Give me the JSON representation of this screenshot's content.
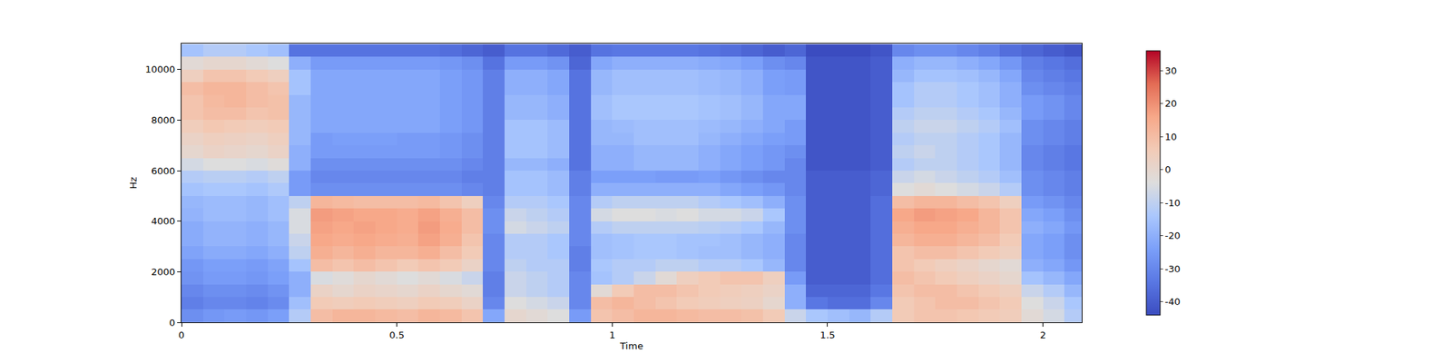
{
  "chart_data": {
    "type": "heatmap",
    "x_label": "Time",
    "y_label": "Hz",
    "xlim": [
      0,
      2.09
    ],
    "xticks": [
      0,
      0.5,
      1,
      1.5,
      2
    ],
    "ylim": [
      0,
      11025
    ],
    "yticks": [
      0,
      2000,
      4000,
      6000,
      8000,
      10000
    ],
    "zlim": [
      -44,
      36
    ],
    "zticks": [
      -40,
      -30,
      -20,
      -10,
      0,
      10,
      20,
      30
    ],
    "x": [
      0.025,
      0.075,
      0.125,
      0.175,
      0.225,
      0.275,
      0.325,
      0.375,
      0.425,
      0.475,
      0.525,
      0.575,
      0.625,
      0.675,
      0.725,
      0.775,
      0.825,
      0.875,
      0.925,
      0.975,
      1.025,
      1.075,
      1.125,
      1.175,
      1.225,
      1.275,
      1.325,
      1.375,
      1.425,
      1.475,
      1.525,
      1.575,
      1.625,
      1.675,
      1.725,
      1.775,
      1.825,
      1.875,
      1.925,
      1.975,
      2.025,
      2.075
    ],
    "y": [
      250,
      750,
      1250,
      1750,
      2250,
      2750,
      3250,
      3750,
      4250,
      4750,
      5250,
      5750,
      6250,
      6750,
      7250,
      7750,
      8250,
      8750,
      9250,
      9750,
      10250,
      10750
    ],
    "z": [
      [
        -28,
        -26,
        -25,
        -26,
        -24,
        -12,
        10,
        12,
        12,
        11,
        10,
        12,
        11,
        8,
        -22,
        0,
        -2,
        -4,
        -25,
        8,
        10,
        12,
        12,
        11,
        10,
        10,
        9,
        6,
        -8,
        -14,
        -16,
        -18,
        -12,
        6,
        8,
        8,
        7,
        6,
        5,
        -2,
        -6,
        -12
      ],
      [
        -32,
        -30,
        -30,
        -31,
        -29,
        -16,
        6,
        5,
        6,
        5,
        4,
        6,
        5,
        2,
        -30,
        -4,
        -6,
        -8,
        -30,
        10,
        12,
        10,
        8,
        6,
        5,
        4,
        3,
        0,
        -20,
        -34,
        -36,
        -36,
        -30,
        6,
        8,
        10,
        10,
        8,
        6,
        -4,
        -8,
        -14
      ],
      [
        -30,
        -28,
        -28,
        -29,
        -27,
        -20,
        2,
        0,
        2,
        1,
        0,
        2,
        0,
        -2,
        -32,
        -8,
        -10,
        -12,
        -30,
        -2,
        6,
        10,
        10,
        8,
        6,
        5,
        4,
        2,
        -20,
        -38,
        -38,
        -38,
        -34,
        8,
        10,
        10,
        8,
        6,
        4,
        -8,
        -12,
        -18
      ],
      [
        -27,
        -25,
        -25,
        -26,
        -24,
        -20,
        -5,
        -3,
        0,
        -2,
        -4,
        -2,
        -5,
        -8,
        -32,
        -8,
        -10,
        -12,
        -30,
        -15,
        -12,
        -8,
        -2,
        4,
        6,
        8,
        8,
        4,
        -25,
        -40,
        -40,
        -40,
        -36,
        10,
        8,
        6,
        4,
        2,
        0,
        -15,
        -18,
        -22
      ],
      [
        -26,
        -24,
        -24,
        -25,
        -23,
        -15,
        10,
        8,
        10,
        8,
        6,
        8,
        6,
        2,
        -30,
        -10,
        -12,
        -12,
        -32,
        -14,
        -12,
        -12,
        -10,
        -10,
        -12,
        -12,
        -14,
        -18,
        -30,
        -40,
        -40,
        -40,
        -36,
        8,
        6,
        4,
        2,
        0,
        -2,
        -20,
        -22,
        -26
      ],
      [
        -23,
        -21,
        -21,
        -22,
        -20,
        -10,
        14,
        12,
        14,
        12,
        12,
        14,
        10,
        6,
        -30,
        -12,
        -12,
        -14,
        -32,
        -16,
        -15,
        -14,
        -14,
        -15,
        -16,
        -16,
        -18,
        -20,
        -30,
        -40,
        -40,
        -40,
        -36,
        8,
        10,
        10,
        8,
        6,
        4,
        -22,
        -24,
        -28
      ],
      [
        -21,
        -19,
        -19,
        -20,
        -18,
        -8,
        16,
        15,
        16,
        15,
        14,
        17,
        14,
        8,
        -30,
        -12,
        -12,
        -14,
        -30,
        -16,
        -15,
        -14,
        -14,
        -15,
        -15,
        -16,
        -18,
        -20,
        -30,
        -40,
        -40,
        -40,
        -36,
        12,
        14,
        14,
        12,
        10,
        6,
        -22,
        -24,
        -28
      ],
      [
        -21,
        -19,
        -19,
        -20,
        -18,
        -5,
        17,
        16,
        17,
        16,
        15,
        18,
        15,
        10,
        -28,
        -6,
        -8,
        -10,
        -30,
        -12,
        -10,
        -10,
        -10,
        -10,
        -11,
        -12,
        -14,
        -18,
        -28,
        -40,
        -40,
        -40,
        -36,
        14,
        16,
        16,
        14,
        12,
        8,
        -20,
        -22,
        -26
      ],
      [
        -19,
        -17,
        -17,
        -18,
        -16,
        -5,
        18,
        17,
        16,
        16,
        15,
        17,
        14,
        10,
        -28,
        -8,
        -10,
        -12,
        -30,
        -6,
        -4,
        -4,
        -5,
        -4,
        -6,
        -6,
        -8,
        -14,
        -28,
        -40,
        -40,
        -40,
        -36,
        16,
        18,
        17,
        16,
        12,
        8,
        -22,
        -24,
        -28
      ],
      [
        -18,
        -17,
        -17,
        -18,
        -16,
        -10,
        12,
        11,
        10,
        10,
        10,
        11,
        8,
        4,
        -30,
        -12,
        -12,
        -14,
        -30,
        -12,
        -10,
        -10,
        -10,
        -10,
        -12,
        -14,
        -16,
        -20,
        -28,
        -40,
        -40,
        -40,
        -36,
        10,
        12,
        12,
        10,
        8,
        4,
        -25,
        -27,
        -30
      ],
      [
        -15,
        -14,
        -14,
        -15,
        -13,
        -25,
        -28,
        -28,
        -28,
        -28,
        -28,
        -28,
        -28,
        -30,
        -32,
        -15,
        -15,
        -17,
        -32,
        -20,
        -20,
        -20,
        -20,
        -20,
        -20,
        -22,
        -24,
        -26,
        -30,
        -40,
        -40,
        -40,
        -38,
        -4,
        -2,
        -4,
        -6,
        -8,
        -12,
        -28,
        -30,
        -32
      ],
      [
        -12,
        -11,
        -11,
        -12,
        -10,
        -25,
        -30,
        -30,
        -30,
        -30,
        -30,
        -30,
        -30,
        -32,
        -32,
        -15,
        -15,
        -17,
        -32,
        -24,
        -24,
        -24,
        -25,
        -25,
        -24,
        -26,
        -28,
        -30,
        -30,
        -40,
        -40,
        -40,
        -38,
        -8,
        -6,
        -8,
        -10,
        -12,
        -16,
        -28,
        -30,
        -32
      ],
      [
        -6,
        -4,
        -4,
        -5,
        -3,
        -20,
        -28,
        -28,
        -28,
        -28,
        -28,
        -28,
        -28,
        -30,
        -32,
        -18,
        -18,
        -20,
        -35,
        -20,
        -20,
        -18,
        -18,
        -18,
        -20,
        -22,
        -24,
        -26,
        -30,
        -42,
        -42,
        -42,
        -40,
        -12,
        -10,
        -10,
        -12,
        -14,
        -18,
        -30,
        -32,
        -34
      ],
      [
        0,
        2,
        1,
        0,
        2,
        -20,
        -25,
        -25,
        -25,
        -25,
        -25,
        -25,
        -26,
        -28,
        -32,
        -15,
        -15,
        -17,
        -35,
        -20,
        -20,
        -18,
        -18,
        -18,
        -20,
        -22,
        -24,
        -26,
        -28,
        -42,
        -42,
        -42,
        -40,
        -10,
        -8,
        -10,
        -12,
        -14,
        -18,
        -30,
        -32,
        -34
      ],
      [
        2,
        4,
        3,
        2,
        4,
        -18,
        -25,
        -24,
        -24,
        -24,
        -25,
        -25,
        -26,
        -28,
        -32,
        -15,
        -15,
        -17,
        -35,
        -18,
        -18,
        -16,
        -16,
        -16,
        -18,
        -20,
        -22,
        -24,
        -25,
        -42,
        -42,
        -42,
        -40,
        -12,
        -10,
        -10,
        -12,
        -14,
        -18,
        -28,
        -30,
        -32
      ],
      [
        5,
        7,
        6,
        5,
        6,
        -18,
        -22,
        -22,
        -22,
        -22,
        -22,
        -22,
        -24,
        -26,
        -32,
        -15,
        -15,
        -17,
        -35,
        -18,
        -17,
        -16,
        -16,
        -16,
        -17,
        -18,
        -20,
        -22,
        -25,
        -42,
        -42,
        -42,
        -40,
        -10,
        -8,
        -8,
        -10,
        -12,
        -16,
        -28,
        -30,
        -32
      ],
      [
        8,
        10,
        10,
        8,
        9,
        -18,
        -22,
        -22,
        -22,
        -22,
        -22,
        -22,
        -24,
        -26,
        -32,
        -18,
        -18,
        -20,
        -35,
        -16,
        -14,
        -14,
        -14,
        -14,
        -15,
        -16,
        -18,
        -22,
        -22,
        -42,
        -42,
        -42,
        -40,
        -12,
        -10,
        -10,
        -12,
        -14,
        -18,
        -25,
        -27,
        -30
      ],
      [
        8,
        11,
        12,
        10,
        9,
        -18,
        -22,
        -22,
        -22,
        -22,
        -22,
        -22,
        -24,
        -26,
        -32,
        -18,
        -18,
        -20,
        -35,
        -16,
        -14,
        -14,
        -14,
        -14,
        -15,
        -16,
        -18,
        -22,
        -22,
        -42,
        -42,
        -42,
        -40,
        -15,
        -12,
        -12,
        -14,
        -16,
        -20,
        -25,
        -27,
        -30
      ],
      [
        10,
        12,
        12,
        10,
        8,
        -15,
        -22,
        -22,
        -22,
        -22,
        -22,
        -22,
        -24,
        -26,
        -32,
        -20,
        -20,
        -22,
        -35,
        -18,
        -16,
        -16,
        -16,
        -16,
        -17,
        -18,
        -20,
        -24,
        -25,
        -42,
        -42,
        -42,
        -40,
        -15,
        -12,
        -12,
        -14,
        -16,
        -20,
        -28,
        -30,
        -32
      ],
      [
        4,
        8,
        8,
        6,
        4,
        -15,
        -22,
        -22,
        -22,
        -22,
        -22,
        -22,
        -24,
        -26,
        -32,
        -20,
        -20,
        -22,
        -35,
        -18,
        -16,
        -16,
        -16,
        -16,
        -17,
        -18,
        -20,
        -24,
        -25,
        -42,
        -42,
        -42,
        -40,
        -18,
        -15,
        -15,
        -16,
        -18,
        -22,
        -30,
        -32,
        -34
      ],
      [
        -2,
        0,
        0,
        -2,
        -4,
        -20,
        -25,
        -25,
        -25,
        -25,
        -25,
        -25,
        -26,
        -28,
        -35,
        -25,
        -25,
        -27,
        -38,
        -22,
        -20,
        -20,
        -20,
        -20,
        -21,
        -22,
        -24,
        -28,
        -30,
        -42,
        -42,
        -42,
        -40,
        -20,
        -18,
        -18,
        -20,
        -22,
        -26,
        -32,
        -34,
        -36
      ],
      [
        -15,
        -12,
        -12,
        -14,
        -16,
        -35,
        -35,
        -35,
        -35,
        -35,
        -35,
        -35,
        -36,
        -38,
        -40,
        -35,
        -35,
        -37,
        -40,
        -35,
        -34,
        -34,
        -34,
        -34,
        -35,
        -36,
        -38,
        -40,
        -38,
        -44,
        -44,
        -44,
        -42,
        -30,
        -28,
        -28,
        -30,
        -32,
        -36,
        -38,
        -40,
        -42
      ]
    ]
  }
}
